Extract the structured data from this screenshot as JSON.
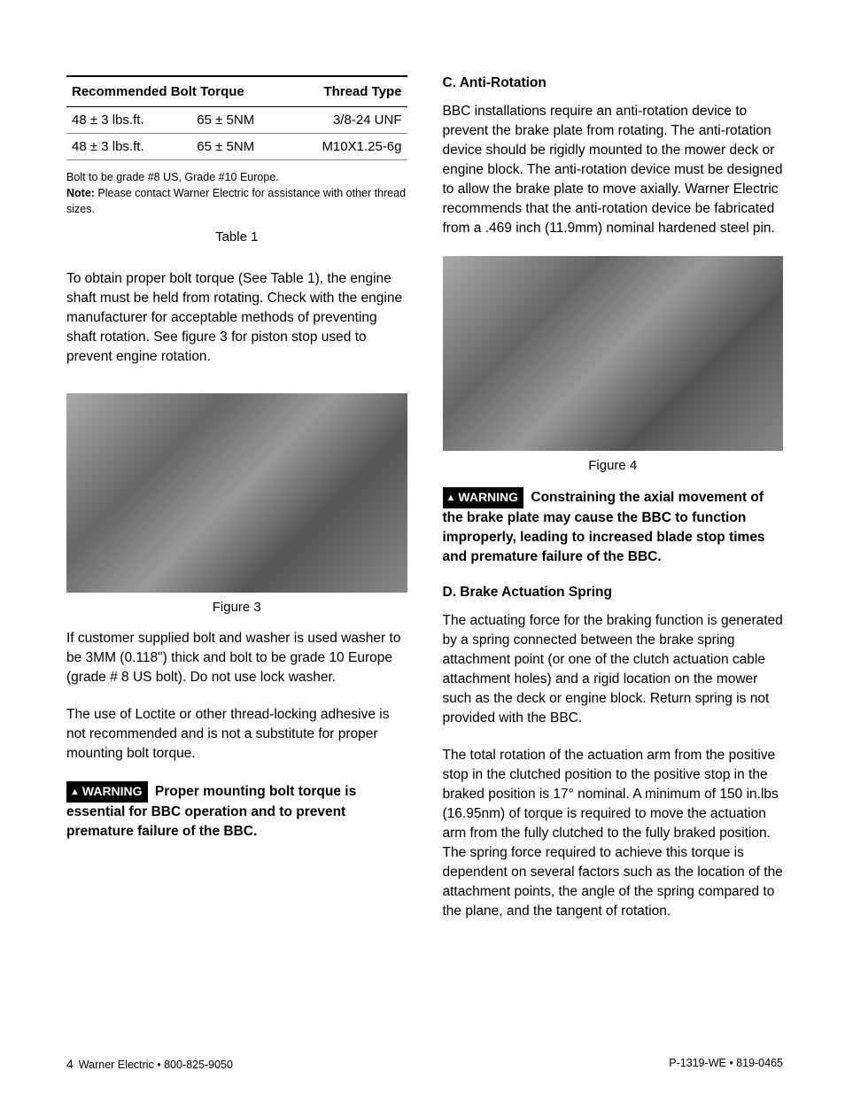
{
  "table": {
    "header_left": "Recommended Bolt Torque",
    "header_right": "Thread Type",
    "rows": [
      {
        "c1": "48 ± 3 lbs.ft.",
        "c2": "65 ± 5NM",
        "c3": "3/8-24 UNF"
      },
      {
        "c1": "48 ± 3 lbs.ft.",
        "c2": "65 ± 5NM",
        "c3": "M10X1.25-6g"
      }
    ],
    "note_line1": "Bolt to be grade #8 US, Grade #10 Europe.",
    "note_label": "Note:",
    "note_line2": " Please contact Warner Electric for assistance with other thread sizes.",
    "caption": "Table 1"
  },
  "left": {
    "p1": "To obtain proper bolt torque (See Table 1), the engine shaft must be held from rotating. Check with the engine manufacturer for acceptable methods of preventing shaft rotation. See figure 3 for piston stop used to prevent engine rotation.",
    "fig3_caption": "Figure 3",
    "p2": "If customer supplied bolt and washer is used washer to be 3MM (0.118\") thick and bolt to be grade 10 Europe (grade # 8 US bolt). Do not use lock washer.",
    "p3": "The use of Loctite or other thread-locking adhesive is not recommended and is not a substitute for proper mounting bolt torque.",
    "warn_label": "WARNING",
    "warn_text": " Proper mounting bolt torque is essential for BBC operation and to prevent premature failure of the BBC."
  },
  "right": {
    "h_c": "C. Anti-Rotation",
    "p_c": "BBC installations require an anti-rotation device to prevent the brake plate from rotating. The anti-rotation device should be rigidly mounted to the mower deck or engine block. The anti-rotation device must be designed to allow the brake plate to move axially. Warner Electric recommends that the anti-rotation device be fabricated from a .469 inch (11.9mm) nominal hardened steel pin.",
    "fig4_caption": "Figure 4",
    "warn_label": "WARNING",
    "warn_text": "  Constraining the axial movement of the brake plate may cause the BBC to function improperly, leading to increased blade stop times and premature failure of the BBC.",
    "h_d": "D. Brake Actuation Spring",
    "p_d1": "The actuating force for the braking function is generated by a spring connected between the brake spring attachment point (or one of the clutch actuation cable attachment holes) and a rigid location on the mower such as the deck or engine block. Return spring is not provided with the BBC.",
    "p_d2": "The total rotation of the actuation arm from the positive stop in the clutched position to the positive stop in the braked position is 17° nominal. A minimum of 150 in.lbs (16.95nm) of torque is required to move the actuation arm from the fully clutched to the fully braked position. The spring force required to achieve this torque is dependent on several factors such as the location of the attachment points, the angle of the spring compared to the plane, and the tangent of rotation."
  },
  "footer": {
    "page_num": "4",
    "left": "Warner Electric • 800-825-9050",
    "right": "P-1319-WE • 819-0465"
  }
}
